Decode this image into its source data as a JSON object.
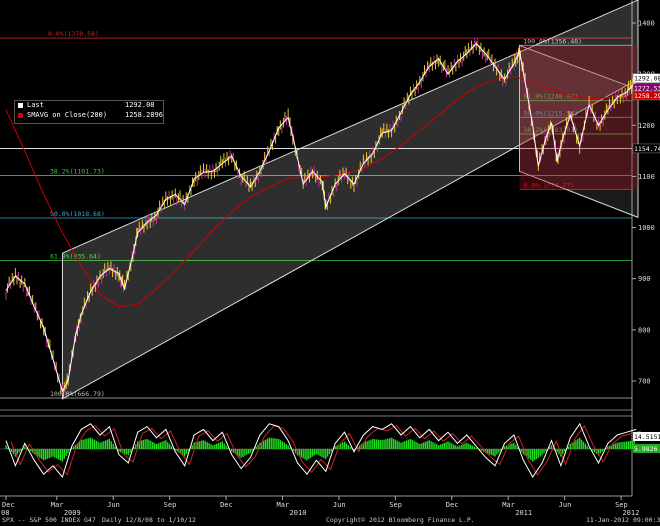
{
  "chart_data": {
    "type": "line",
    "instrument": "SPX -- S&P 500 INDEX",
    "footer": {
      "ticker": "SPX -- S&P 500 INDEX",
      "code": "G47",
      "range": "Daily  12/8/08 to 1/10/12",
      "copyright": "Copyright© 2012 Bloomberg Finance L.P.",
      "timestamp": "11-Jan-2012 09:00:38"
    },
    "legend": {
      "last_label": "Last",
      "last_value": "1292.08",
      "smavg_label": "SMAVG on Close(200)",
      "smavg_value": "1258.2896",
      "last_color": "#ffffff",
      "smavg_color": "#cc0000"
    },
    "price_axis": {
      "ticks": [
        700,
        800,
        900,
        1000,
        1100,
        1200,
        1300,
        1400
      ],
      "labels": [
        "700",
        "800",
        "900",
        "1000",
        "1100",
        "1200",
        "1300",
        "1400"
      ],
      "ylim": [
        655,
        1445
      ],
      "badges": [
        {
          "text": "1292.08",
          "value": 1292.08,
          "bg": "#ffffff",
          "fg": "#000000"
        },
        {
          "text": "1272.53",
          "value": 1272.53,
          "bg": "#8a006e",
          "fg": "#ffffff"
        },
        {
          "text": "1258.29",
          "value": 1258.29,
          "bg": "#cc0000",
          "fg": "#ffffff"
        },
        {
          "text": "1154.74",
          "value": 1154.74,
          "bg": "#000000",
          "fg": "#ffffff"
        }
      ]
    },
    "time_axis": {
      "months": [
        "Dec",
        "Mar",
        "Jun",
        "Sep",
        "Dec",
        "Mar",
        "Jun",
        "Sep",
        "Dec",
        "Mar",
        "Jun",
        "Sep",
        "Dec"
      ],
      "years": [
        "08",
        "2009",
        "2010",
        "2011",
        "2012"
      ]
    },
    "fib_levels": [
      {
        "label": "0.0%(1370.58)",
        "value": 1370.58,
        "color": "#cc2222"
      },
      {
        "label": "38.2%(1101.73)",
        "value": 1101.73,
        "color": "#33cc33"
      },
      {
        "label": "50.0%(1018.68)",
        "value": 1018.68,
        "color": "#33aacc"
      },
      {
        "label": "61.8%(935.64)",
        "value": 935.64,
        "color": "#33cc33"
      },
      {
        "label": "100.0%(666.79)",
        "value": 666.79,
        "color": "#bbbbbb"
      },
      {
        "label": "100.0%(1356.48)",
        "value": 1356.48,
        "color": "#bbbbbb"
      },
      {
        "label": "61.8%(1248.07)",
        "value": 1248.07,
        "color": "#33cc33"
      },
      {
        "label": "50.0%(1215.57)",
        "value": 1215.57,
        "color": "#33aacc"
      },
      {
        "label": "38.2%(1183.07)",
        "value": 1183.07,
        "color": "#33cc33"
      },
      {
        "label": "0.0%(1074.77)",
        "value": 1074.77,
        "color": "#cc2222"
      }
    ],
    "close_series": [
      {
        "m": 0,
        "v": 877
      },
      {
        "m": 0.5,
        "v": 905
      },
      {
        "m": 1,
        "v": 890
      },
      {
        "m": 1.5,
        "v": 845
      },
      {
        "m": 2,
        "v": 805
      },
      {
        "m": 2.5,
        "v": 742
      },
      {
        "m": 3,
        "v": 680
      },
      {
        "m": 3.3,
        "v": 700
      },
      {
        "m": 3.7,
        "v": 790
      },
      {
        "m": 4,
        "v": 830
      },
      {
        "m": 4.5,
        "v": 875
      },
      {
        "m": 5,
        "v": 905
      },
      {
        "m": 5.5,
        "v": 920
      },
      {
        "m": 6,
        "v": 910
      },
      {
        "m": 6.3,
        "v": 880
      },
      {
        "m": 6.7,
        "v": 940
      },
      {
        "m": 7,
        "v": 990
      },
      {
        "m": 7.5,
        "v": 1010
      },
      {
        "m": 8,
        "v": 1025
      },
      {
        "m": 8.5,
        "v": 1055
      },
      {
        "m": 9,
        "v": 1065
      },
      {
        "m": 9.5,
        "v": 1045
      },
      {
        "m": 10,
        "v": 1095
      },
      {
        "m": 10.5,
        "v": 1108
      },
      {
        "m": 11,
        "v": 1110
      },
      {
        "m": 11.5,
        "v": 1125
      },
      {
        "m": 12,
        "v": 1140
      },
      {
        "m": 12.5,
        "v": 1100
      },
      {
        "m": 13,
        "v": 1080
      },
      {
        "m": 13.5,
        "v": 1110
      },
      {
        "m": 14,
        "v": 1150
      },
      {
        "m": 14.5,
        "v": 1195
      },
      {
        "m": 15,
        "v": 1215
      },
      {
        "m": 15.3,
        "v": 1170
      },
      {
        "m": 15.8,
        "v": 1085
      },
      {
        "m": 16.3,
        "v": 1110
      },
      {
        "m": 16.8,
        "v": 1090
      },
      {
        "m": 17,
        "v": 1040
      },
      {
        "m": 17.5,
        "v": 1085
      },
      {
        "m": 18,
        "v": 1105
      },
      {
        "m": 18.5,
        "v": 1085
      },
      {
        "m": 19,
        "v": 1125
      },
      {
        "m": 19.5,
        "v": 1145
      },
      {
        "m": 20,
        "v": 1185
      },
      {
        "m": 20.5,
        "v": 1190
      },
      {
        "m": 21,
        "v": 1225
      },
      {
        "m": 21.5,
        "v": 1260
      },
      {
        "m": 22,
        "v": 1285
      },
      {
        "m": 22.5,
        "v": 1315
      },
      {
        "m": 23,
        "v": 1330
      },
      {
        "m": 23.5,
        "v": 1300
      },
      {
        "m": 24,
        "v": 1325
      },
      {
        "m": 24.5,
        "v": 1340
      },
      {
        "m": 25,
        "v": 1360
      },
      {
        "m": 25.5,
        "v": 1340
      },
      {
        "m": 26,
        "v": 1315
      },
      {
        "m": 26.5,
        "v": 1290
      },
      {
        "m": 27,
        "v": 1320
      },
      {
        "m": 27.3,
        "v": 1345
      },
      {
        "m": 27.6,
        "v": 1285
      },
      {
        "m": 28,
        "v": 1200
      },
      {
        "m": 28.3,
        "v": 1120
      },
      {
        "m": 28.7,
        "v": 1175
      },
      {
        "m": 29,
        "v": 1205
      },
      {
        "m": 29.3,
        "v": 1130
      },
      {
        "m": 29.6,
        "v": 1175
      },
      {
        "m": 30,
        "v": 1220
      },
      {
        "m": 30.5,
        "v": 1160
      },
      {
        "m": 31,
        "v": 1240
      },
      {
        "m": 31.5,
        "v": 1200
      },
      {
        "m": 32,
        "v": 1230
      },
      {
        "m": 32.5,
        "v": 1255
      },
      {
        "m": 33,
        "v": 1265
      },
      {
        "m": 33.3,
        "v": 1277
      },
      {
        "m": 33.5,
        "v": 1292
      }
    ],
    "sma_series": [
      {
        "m": 0,
        "v": 1230
      },
      {
        "m": 1,
        "v": 1150
      },
      {
        "m": 2,
        "v": 1065
      },
      {
        "m": 3,
        "v": 990
      },
      {
        "m": 4,
        "v": 925
      },
      {
        "m": 5,
        "v": 870
      },
      {
        "m": 6,
        "v": 845
      },
      {
        "m": 7,
        "v": 850
      },
      {
        "m": 8,
        "v": 880
      },
      {
        "m": 9,
        "v": 915
      },
      {
        "m": 10,
        "v": 955
      },
      {
        "m": 11,
        "v": 995
      },
      {
        "m": 12,
        "v": 1030
      },
      {
        "m": 13,
        "v": 1060
      },
      {
        "m": 14,
        "v": 1080
      },
      {
        "m": 15,
        "v": 1095
      },
      {
        "m": 16,
        "v": 1100
      },
      {
        "m": 17,
        "v": 1100
      },
      {
        "m": 18,
        "v": 1105
      },
      {
        "m": 19,
        "v": 1115
      },
      {
        "m": 20,
        "v": 1135
      },
      {
        "m": 21,
        "v": 1160
      },
      {
        "m": 22,
        "v": 1190
      },
      {
        "m": 23,
        "v": 1220
      },
      {
        "m": 24,
        "v": 1250
      },
      {
        "m": 25,
        "v": 1275
      },
      {
        "m": 26,
        "v": 1290
      },
      {
        "m": 27,
        "v": 1295
      },
      {
        "m": 28,
        "v": 1285
      },
      {
        "m": 29,
        "v": 1270
      },
      {
        "m": 30,
        "v": 1258
      },
      {
        "m": 31,
        "v": 1252
      },
      {
        "m": 32,
        "v": 1254
      },
      {
        "m": 33,
        "v": 1257
      },
      {
        "m": 33.5,
        "v": 1258.29
      }
    ],
    "oscillator": {
      "axis_labels": [
        "14.5151",
        "5.9826"
      ],
      "series": [
        {
          "m": 0,
          "v": 0.3
        },
        {
          "m": 0.5,
          "v": -0.6
        },
        {
          "m": 1,
          "v": 0.2
        },
        {
          "m": 1.5,
          "v": -0.4
        },
        {
          "m": 2,
          "v": -0.9
        },
        {
          "m": 2.5,
          "v": -0.6
        },
        {
          "m": 3,
          "v": -1.0
        },
        {
          "m": 3.5,
          "v": 0.1
        },
        {
          "m": 4,
          "v": 0.7
        },
        {
          "m": 4.5,
          "v": 0.9
        },
        {
          "m": 5,
          "v": 0.5
        },
        {
          "m": 5.5,
          "v": 0.8
        },
        {
          "m": 6,
          "v": -0.2
        },
        {
          "m": 6.5,
          "v": -0.5
        },
        {
          "m": 7,
          "v": 0.6
        },
        {
          "m": 7.5,
          "v": 0.8
        },
        {
          "m": 8,
          "v": 0.4
        },
        {
          "m": 8.5,
          "v": 0.7
        },
        {
          "m": 9,
          "v": -0.1
        },
        {
          "m": 9.5,
          "v": -0.6
        },
        {
          "m": 10,
          "v": 0.5
        },
        {
          "m": 10.5,
          "v": 0.7
        },
        {
          "m": 11,
          "v": 0.3
        },
        {
          "m": 11.5,
          "v": 0.6
        },
        {
          "m": 12,
          "v": -0.2
        },
        {
          "m": 12.5,
          "v": -0.7
        },
        {
          "m": 13,
          "v": -0.3
        },
        {
          "m": 13.5,
          "v": 0.5
        },
        {
          "m": 14,
          "v": 0.9
        },
        {
          "m": 14.5,
          "v": 0.8
        },
        {
          "m": 15,
          "v": 0.3
        },
        {
          "m": 15.5,
          "v": -0.5
        },
        {
          "m": 16,
          "v": -0.9
        },
        {
          "m": 16.5,
          "v": -0.4
        },
        {
          "m": 17,
          "v": -0.8
        },
        {
          "m": 17.5,
          "v": 0.2
        },
        {
          "m": 18,
          "v": 0.6
        },
        {
          "m": 18.5,
          "v": -0.1
        },
        {
          "m": 19,
          "v": 0.5
        },
        {
          "m": 19.5,
          "v": 0.8
        },
        {
          "m": 20,
          "v": 0.7
        },
        {
          "m": 20.5,
          "v": 0.9
        },
        {
          "m": 21,
          "v": 0.5
        },
        {
          "m": 21.5,
          "v": 0.8
        },
        {
          "m": 22,
          "v": 0.4
        },
        {
          "m": 22.5,
          "v": 0.7
        },
        {
          "m": 23,
          "v": 0.3
        },
        {
          "m": 23.5,
          "v": 0.6
        },
        {
          "m": 24,
          "v": 0.2
        },
        {
          "m": 24.5,
          "v": 0.5
        },
        {
          "m": 25,
          "v": 0.1
        },
        {
          "m": 25.5,
          "v": -0.3
        },
        {
          "m": 26,
          "v": -0.6
        },
        {
          "m": 26.5,
          "v": 0.2
        },
        {
          "m": 27,
          "v": 0.5
        },
        {
          "m": 27.5,
          "v": -0.4
        },
        {
          "m": 28,
          "v": -1.0
        },
        {
          "m": 28.5,
          "v": -0.5
        },
        {
          "m": 29,
          "v": 0.3
        },
        {
          "m": 29.5,
          "v": -0.6
        },
        {
          "m": 30,
          "v": 0.4
        },
        {
          "m": 30.5,
          "v": 0.9
        },
        {
          "m": 31,
          "v": 0.1
        },
        {
          "m": 31.5,
          "v": -0.5
        },
        {
          "m": 32,
          "v": 0.2
        },
        {
          "m": 32.5,
          "v": 0.5
        },
        {
          "m": 33,
          "v": 0.6
        },
        {
          "m": 33.5,
          "v": 0.7
        }
      ]
    },
    "colors": {
      "background": "#000000",
      "price": "#ffffff",
      "sma": "#cc0000",
      "channel_fill": "#ffffff",
      "down_channel_fill": "#a01020",
      "osc_hist": "#22dd22"
    }
  }
}
